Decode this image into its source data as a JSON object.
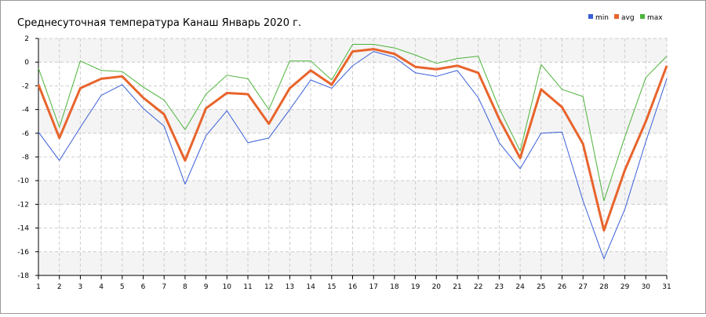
{
  "chart_data": {
    "type": "line",
    "title": "Среднесуточная температура Канаш  Январь 2020 г.",
    "x": [
      1,
      2,
      3,
      4,
      5,
      6,
      7,
      8,
      9,
      10,
      11,
      12,
      13,
      14,
      15,
      16,
      17,
      18,
      19,
      20,
      21,
      22,
      23,
      24,
      25,
      26,
      27,
      28,
      29,
      30,
      31
    ],
    "xlim": [
      1,
      31
    ],
    "xticks": [
      1,
      2,
      3,
      4,
      5,
      6,
      7,
      8,
      9,
      10,
      11,
      12,
      13,
      14,
      15,
      16,
      17,
      18,
      19,
      20,
      21,
      22,
      23,
      24,
      25,
      26,
      27,
      28,
      29,
      30,
      31
    ],
    "ylim": [
      -18,
      2
    ],
    "yticks": [
      -18,
      -16,
      -14,
      -12,
      -10,
      -8,
      -6,
      -4,
      -2,
      0,
      2
    ],
    "grid": true,
    "legend": "top-right",
    "series": [
      {
        "name": "min",
        "color": "#3a5fd9",
        "values": [
          -5.9,
          -8.3,
          -5.5,
          -2.8,
          -1.9,
          -3.9,
          -5.4,
          -10.3,
          -6.2,
          -4.1,
          -6.8,
          -6.4,
          -4.0,
          -1.5,
          -2.2,
          -0.3,
          0.9,
          0.4,
          -0.9,
          -1.2,
          -0.7,
          -3.0,
          -6.8,
          -9.0,
          -6.0,
          -5.9,
          -11.7,
          -16.6,
          -12.4,
          -6.7,
          -1.4
        ]
      },
      {
        "name": "avg",
        "color": "#e8642c",
        "values": [
          -1.9,
          -6.4,
          -2.2,
          -1.4,
          -1.2,
          -3.0,
          -4.4,
          -8.3,
          -3.9,
          -2.6,
          -2.7,
          -5.2,
          -2.2,
          -0.7,
          -1.9,
          0.9,
          1.1,
          0.7,
          -0.4,
          -0.6,
          -0.3,
          -0.9,
          -4.8,
          -8.1,
          -2.3,
          -3.8,
          -6.9,
          -14.2,
          -9.1,
          -5.0,
          -0.3
        ]
      },
      {
        "name": "max",
        "color": "#4cb33a",
        "values": [
          -0.5,
          -5.5,
          0.1,
          -0.7,
          -0.8,
          -2.1,
          -3.2,
          -5.7,
          -2.7,
          -1.1,
          -1.4,
          -4.0,
          0.1,
          0.1,
          -1.5,
          1.5,
          1.5,
          1.2,
          0.6,
          -0.1,
          0.3,
          0.5,
          -3.9,
          -7.5,
          -0.2,
          -2.3,
          -2.9,
          -11.7,
          -6.3,
          -1.3,
          0.5
        ]
      }
    ]
  }
}
